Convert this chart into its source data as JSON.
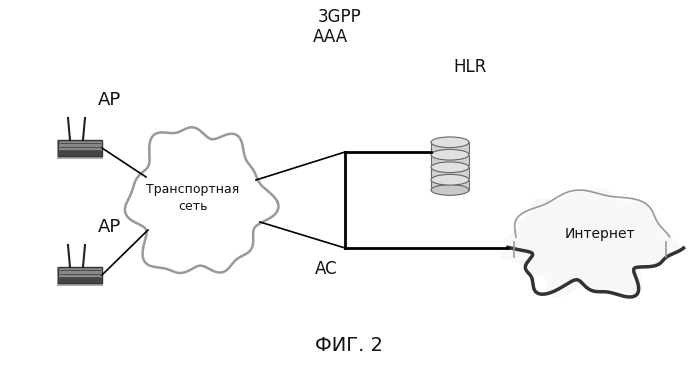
{
  "bg_color": "#ffffff",
  "title": "ФИГ. 2",
  "label_3gpp": "3GPP",
  "label_aaa": "AAA",
  "label_hlr": "HLR",
  "label_ap1": "AP",
  "label_ap2": "AP",
  "label_ac": "AC",
  "label_transport": "Транспортная\nсеть",
  "label_internet": "Интернет",
  "cloud_edge_color": "#999999",
  "line_color": "#000000"
}
